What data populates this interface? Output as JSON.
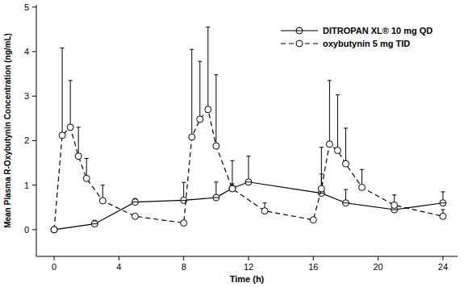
{
  "chart_data": {
    "type": "line",
    "x_label": "Time (h)",
    "y_label": "Mean Plasma R-Oxybutynin Concentration (ng/mL)",
    "xlim": [
      -1.1,
      24.9
    ],
    "xticks": [
      0,
      4,
      8,
      12,
      16,
      20,
      24
    ],
    "ylim": [
      -0.6,
      5.05
    ],
    "yticks": [
      0,
      1,
      2,
      3,
      4,
      5
    ],
    "grid": false,
    "legend": "top-right",
    "series": [
      {
        "name": "DITROPAN XL® 10 mg QD",
        "color": "#000000",
        "line_style": "solid",
        "marker": "circle",
        "x": [
          0,
          2.5,
          5,
          8,
          10,
          11,
          12,
          16.5,
          18,
          21,
          24
        ],
        "values": [
          0,
          0.13,
          0.62,
          0.66,
          0.72,
          0.93,
          1.07,
          0.82,
          0.6,
          0.45,
          0.6
        ],
        "errors": [
          0,
          0.08,
          0.08,
          0.4,
          0.35,
          0.1,
          0.58,
          0.43,
          0.3,
          0.12,
          0.25
        ]
      },
      {
        "name": "oxybutynin 5 mg TID",
        "color": "#000000",
        "line_style": "dashed",
        "marker": "circle",
        "x": [
          0,
          0.5,
          1,
          1.5,
          2,
          3,
          5,
          8,
          8.5,
          9,
          9.5,
          10,
          11,
          13,
          16,
          16.5,
          17,
          17.5,
          18,
          19,
          21,
          24
        ],
        "values": [
          0,
          2.12,
          2.3,
          1.65,
          1.15,
          0.65,
          0.3,
          0.15,
          2.08,
          2.48,
          2.7,
          1.88,
          0.92,
          0.42,
          0.22,
          0.92,
          1.92,
          1.78,
          1.48,
          0.95,
          0.55,
          0.3
        ],
        "errors": [
          0,
          1.96,
          1.05,
          0.65,
          0.45,
          0.35,
          0,
          0,
          1.97,
          1.3,
          1.85,
          1.6,
          0.63,
          0.18,
          0,
          0.93,
          1.43,
          1.25,
          0.8,
          0.4,
          0.23,
          0.15
        ]
      }
    ]
  }
}
